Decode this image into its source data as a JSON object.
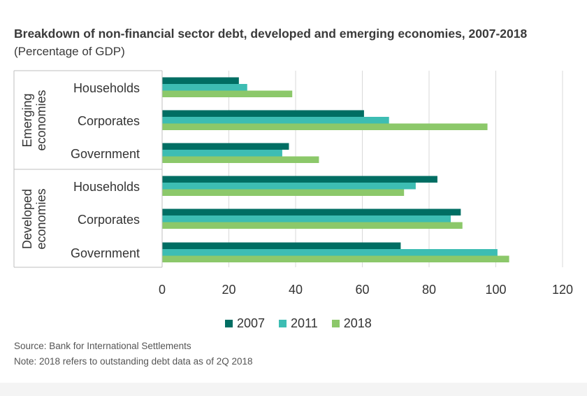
{
  "title": "Breakdown of non-financial sector debt, developed and emerging economies, 2007-2018",
  "subtitle": "(Percentage of GDP)",
  "source": "Source: Bank for International Settlements",
  "note": "Note: 2018 refers to outstanding debt data as of 2Q 2018",
  "colors": {
    "2007": "#006e63",
    "2011": "#3dbdb3",
    "2018": "#8cc86a"
  },
  "chart_data": {
    "type": "bar",
    "orientation": "horizontal",
    "groups": [
      {
        "name": "Emerging economies",
        "name_lines": [
          "Emerging",
          "economies"
        ],
        "categories": [
          "Households",
          "Corporates",
          "Government"
        ]
      },
      {
        "name": "Developed economies",
        "name_lines": [
          "Developed",
          "economies"
        ],
        "categories": [
          "Households",
          "Corporates",
          "Government"
        ]
      }
    ],
    "series": [
      {
        "name": "2007",
        "values": [
          23,
          60.5,
          38,
          82.5,
          89.5,
          71.5
        ]
      },
      {
        "name": "2011",
        "values": [
          25.5,
          68,
          36,
          76,
          86.5,
          100.5
        ]
      },
      {
        "name": "2018",
        "values": [
          39,
          97.5,
          47,
          72.5,
          90,
          104
        ]
      }
    ],
    "xlim": [
      0,
      120
    ],
    "xticks": [
      0,
      20,
      40,
      60,
      80,
      100,
      120
    ],
    "grid": true,
    "legend_position": "bottom-center"
  }
}
